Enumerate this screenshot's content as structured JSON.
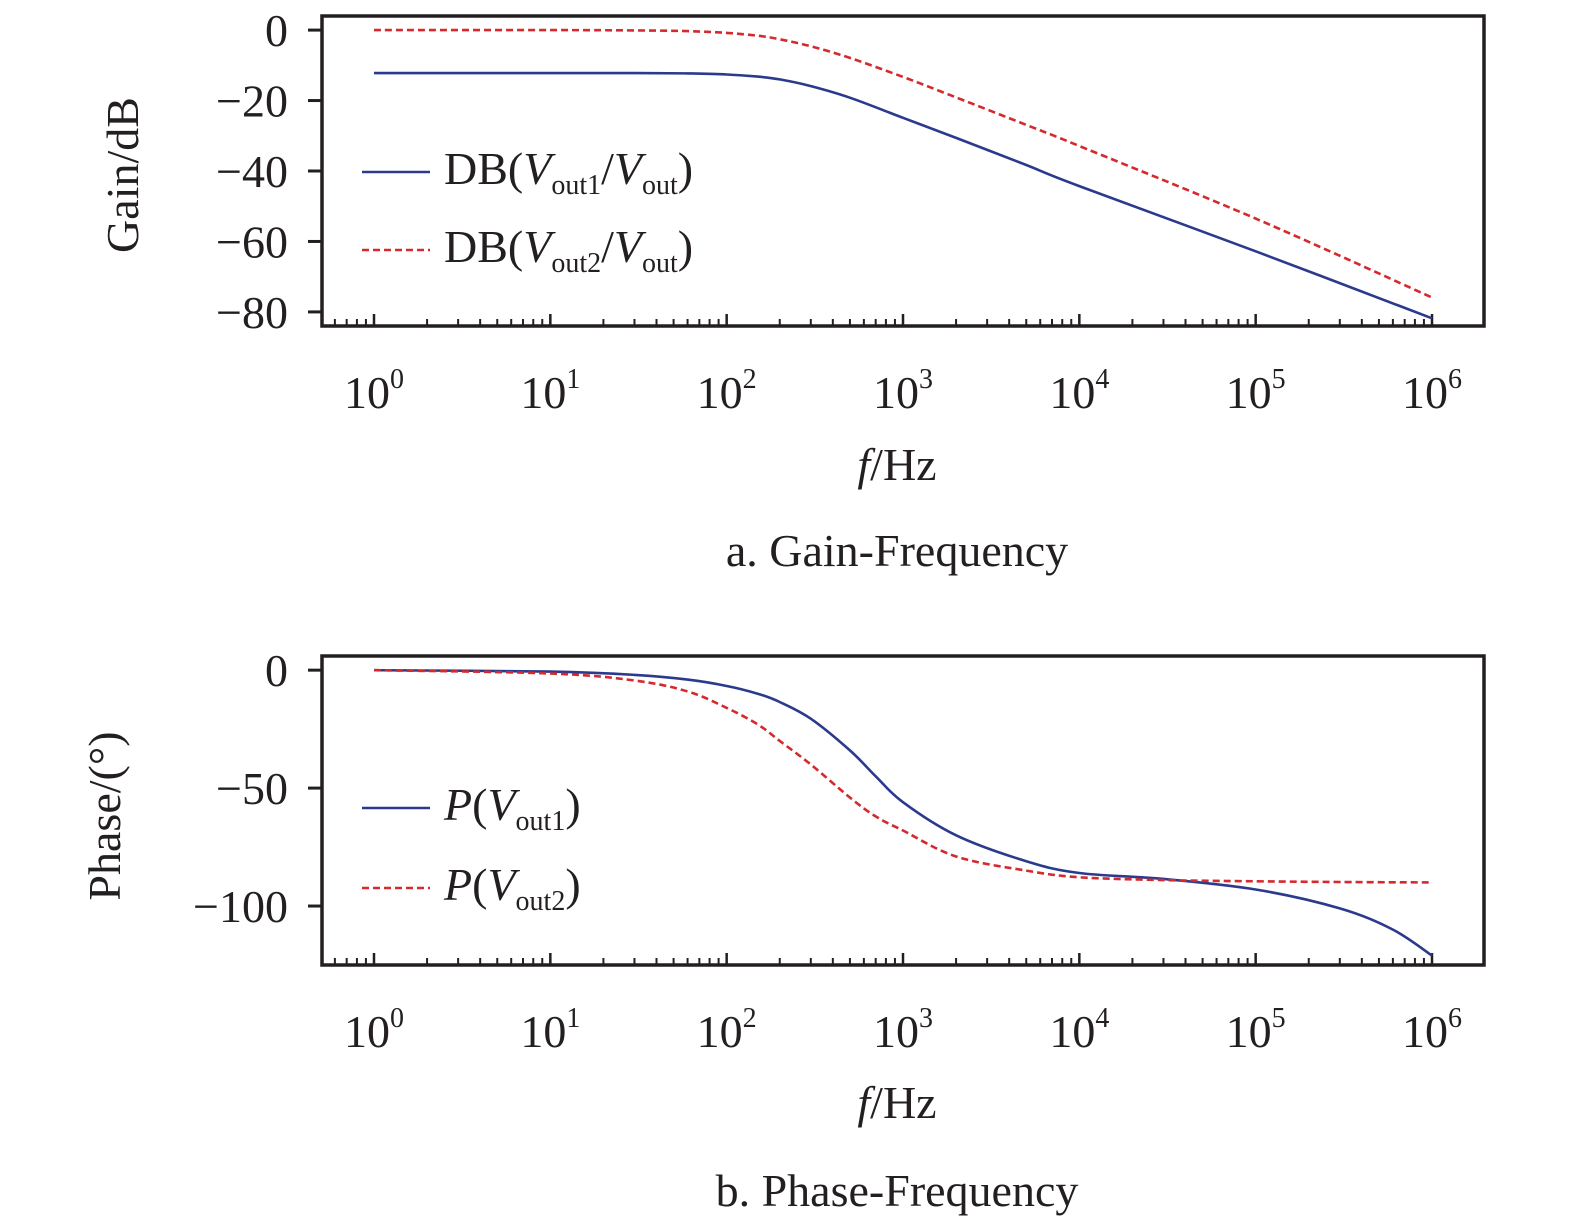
{
  "chart_data": [
    {
      "type": "line",
      "caption": "a. Gain-Frequency",
      "xlabel": {
        "italic": "f",
        "rest": "/Hz"
      },
      "ylabel": "Gain/dB",
      "x_scale": "log",
      "xlim": [
        1,
        1000000
      ],
      "ylim": [
        -84,
        4
      ],
      "x_ticks": [
        {
          "value": 1,
          "base": "10",
          "exp": "0"
        },
        {
          "value": 10,
          "base": "10",
          "exp": "1"
        },
        {
          "value": 100,
          "base": "10",
          "exp": "2"
        },
        {
          "value": 1000,
          "base": "10",
          "exp": "3"
        },
        {
          "value": 10000,
          "base": "10",
          "exp": "4"
        },
        {
          "value": 100000,
          "base": "10",
          "exp": "5"
        },
        {
          "value": 1000000,
          "base": "10",
          "exp": "6"
        }
      ],
      "y_ticks": [
        {
          "value": 0,
          "label": "0"
        },
        {
          "value": -20,
          "label": "−20"
        },
        {
          "value": -40,
          "label": "−40"
        },
        {
          "value": -60,
          "label": "−60"
        },
        {
          "value": -80,
          "label": "−80"
        }
      ],
      "legend_position": "center-left",
      "grid": false,
      "series": [
        {
          "legend": {
            "pre": "DB(",
            "v1": "V",
            "sub1": "out1",
            "mid": "/",
            "v2": "V",
            "sub2": "out",
            "post": ")"
          },
          "color": "#2b3a8c",
          "dash": "solid",
          "x": [
            1,
            10,
            30,
            60,
            100,
            150,
            200,
            300,
            500,
            1000,
            2000,
            5000,
            10000,
            100000,
            1000000
          ],
          "y": [
            -12.2,
            -12.2,
            -12.2,
            -12.3,
            -12.6,
            -13.2,
            -14.0,
            -15.9,
            -19.2,
            -24.9,
            -30.6,
            -38.3,
            -44.3,
            -62.8,
            -81.8
          ]
        },
        {
          "legend": {
            "pre": "DB(",
            "v1": "V",
            "sub1": "out2",
            "mid": "/",
            "v2": "V",
            "sub2": "out",
            "post": ")"
          },
          "color": "#d42a2e",
          "dash": "dashed",
          "x": [
            1,
            10,
            30,
            60,
            100,
            150,
            200,
            300,
            500,
            1000,
            2000,
            5000,
            10000,
            100000,
            1000000
          ],
          "y": [
            0,
            0,
            -0.1,
            -0.3,
            -0.8,
            -1.6,
            -2.6,
            -4.6,
            -7.9,
            -13.3,
            -19.1,
            -26.9,
            -32.9,
            -53.5,
            -75.9
          ]
        }
      ]
    },
    {
      "type": "line",
      "caption": "b. Phase-Frequency",
      "xlabel": {
        "italic": "f",
        "rest": "/Hz"
      },
      "ylabel": "Phase/(°)",
      "x_scale": "log",
      "xlim": [
        1,
        1000000
      ],
      "ylim": [
        -125,
        6
      ],
      "x_ticks": [
        {
          "value": 1,
          "base": "10",
          "exp": "0"
        },
        {
          "value": 10,
          "base": "10",
          "exp": "1"
        },
        {
          "value": 100,
          "base": "10",
          "exp": "2"
        },
        {
          "value": 1000,
          "base": "10",
          "exp": "3"
        },
        {
          "value": 10000,
          "base": "10",
          "exp": "4"
        },
        {
          "value": 100000,
          "base": "10",
          "exp": "5"
        },
        {
          "value": 1000000,
          "base": "10",
          "exp": "6"
        }
      ],
      "y_ticks": [
        {
          "value": 0,
          "label": "0"
        },
        {
          "value": -50,
          "label": "−50"
        },
        {
          "value": -100,
          "label": "−100"
        }
      ],
      "legend_position": "bottom-left",
      "grid": false,
      "series": [
        {
          "legend": {
            "pre": "",
            "v0": "P",
            "open": "(",
            "v1": "V",
            "sub1": "out1",
            "post": ")"
          },
          "color": "#2b3a8c",
          "dash": "solid",
          "x": [
            1,
            10,
            30,
            60,
            100,
            150,
            200,
            300,
            500,
            700,
            1000,
            2000,
            5000,
            10000,
            30000,
            100000,
            300000,
            600000,
            1000000
          ],
          "y": [
            0,
            -0.6,
            -2,
            -4,
            -6.7,
            -10,
            -13.5,
            -20.6,
            -34,
            -45,
            -56,
            -70,
            -81,
            -86,
            -88.5,
            -93,
            -101,
            -110,
            -121
          ]
        },
        {
          "legend": {
            "pre": "",
            "v0": "P",
            "open": "(",
            "v1": "V",
            "sub1": "out2",
            "post": ")"
          },
          "color": "#d42a2e",
          "dash": "dashed",
          "x": [
            1,
            10,
            30,
            60,
            100,
            150,
            200,
            300,
            500,
            700,
            1000,
            2000,
            5000,
            10000,
            30000,
            100000,
            300000,
            1000000
          ],
          "y": [
            0,
            -1.4,
            -4.4,
            -9,
            -16,
            -23,
            -30,
            -40,
            -54,
            -62,
            -68,
            -79,
            -85,
            -87.8,
            -89,
            -89.5,
            -89.8,
            -90
          ]
        }
      ]
    }
  ]
}
